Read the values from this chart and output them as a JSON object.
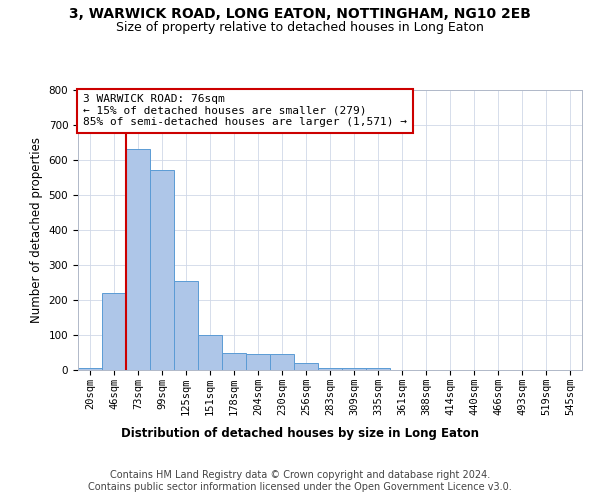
{
  "title_line1": "3, WARWICK ROAD, LONG EATON, NOTTINGHAM, NG10 2EB",
  "title_line2": "Size of property relative to detached houses in Long Eaton",
  "xlabel": "Distribution of detached houses by size in Long Eaton",
  "ylabel": "Number of detached properties",
  "bin_labels": [
    "20sqm",
    "46sqm",
    "73sqm",
    "99sqm",
    "125sqm",
    "151sqm",
    "178sqm",
    "204sqm",
    "230sqm",
    "256sqm",
    "283sqm",
    "309sqm",
    "335sqm",
    "361sqm",
    "388sqm",
    "414sqm",
    "440sqm",
    "466sqm",
    "493sqm",
    "519sqm",
    "545sqm"
  ],
  "bar_heights": [
    5,
    220,
    630,
    570,
    255,
    100,
    50,
    45,
    45,
    20,
    5,
    5,
    5,
    0,
    0,
    0,
    0,
    0,
    0,
    0,
    0
  ],
  "bar_color": "#aec6e8",
  "bar_edge_color": "#5b9bd5",
  "vline_x_index": 2,
  "vline_color": "#cc0000",
  "annotation_text": "3 WARWICK ROAD: 76sqm\n← 15% of detached houses are smaller (279)\n85% of semi-detached houses are larger (1,571) →",
  "annotation_box_color": "#ffffff",
  "annotation_box_edge": "#cc0000",
  "ylim": [
    0,
    800
  ],
  "yticks": [
    0,
    100,
    200,
    300,
    400,
    500,
    600,
    700,
    800
  ],
  "footer_text": "Contains HM Land Registry data © Crown copyright and database right 2024.\nContains public sector information licensed under the Open Government Licence v3.0.",
  "bg_color": "#ffffff",
  "grid_color": "#d0d8e8",
  "title_fontsize": 10,
  "subtitle_fontsize": 9,
  "axis_label_fontsize": 8.5,
  "tick_fontsize": 7.5,
  "footer_fontsize": 7,
  "annotation_fontsize": 8
}
